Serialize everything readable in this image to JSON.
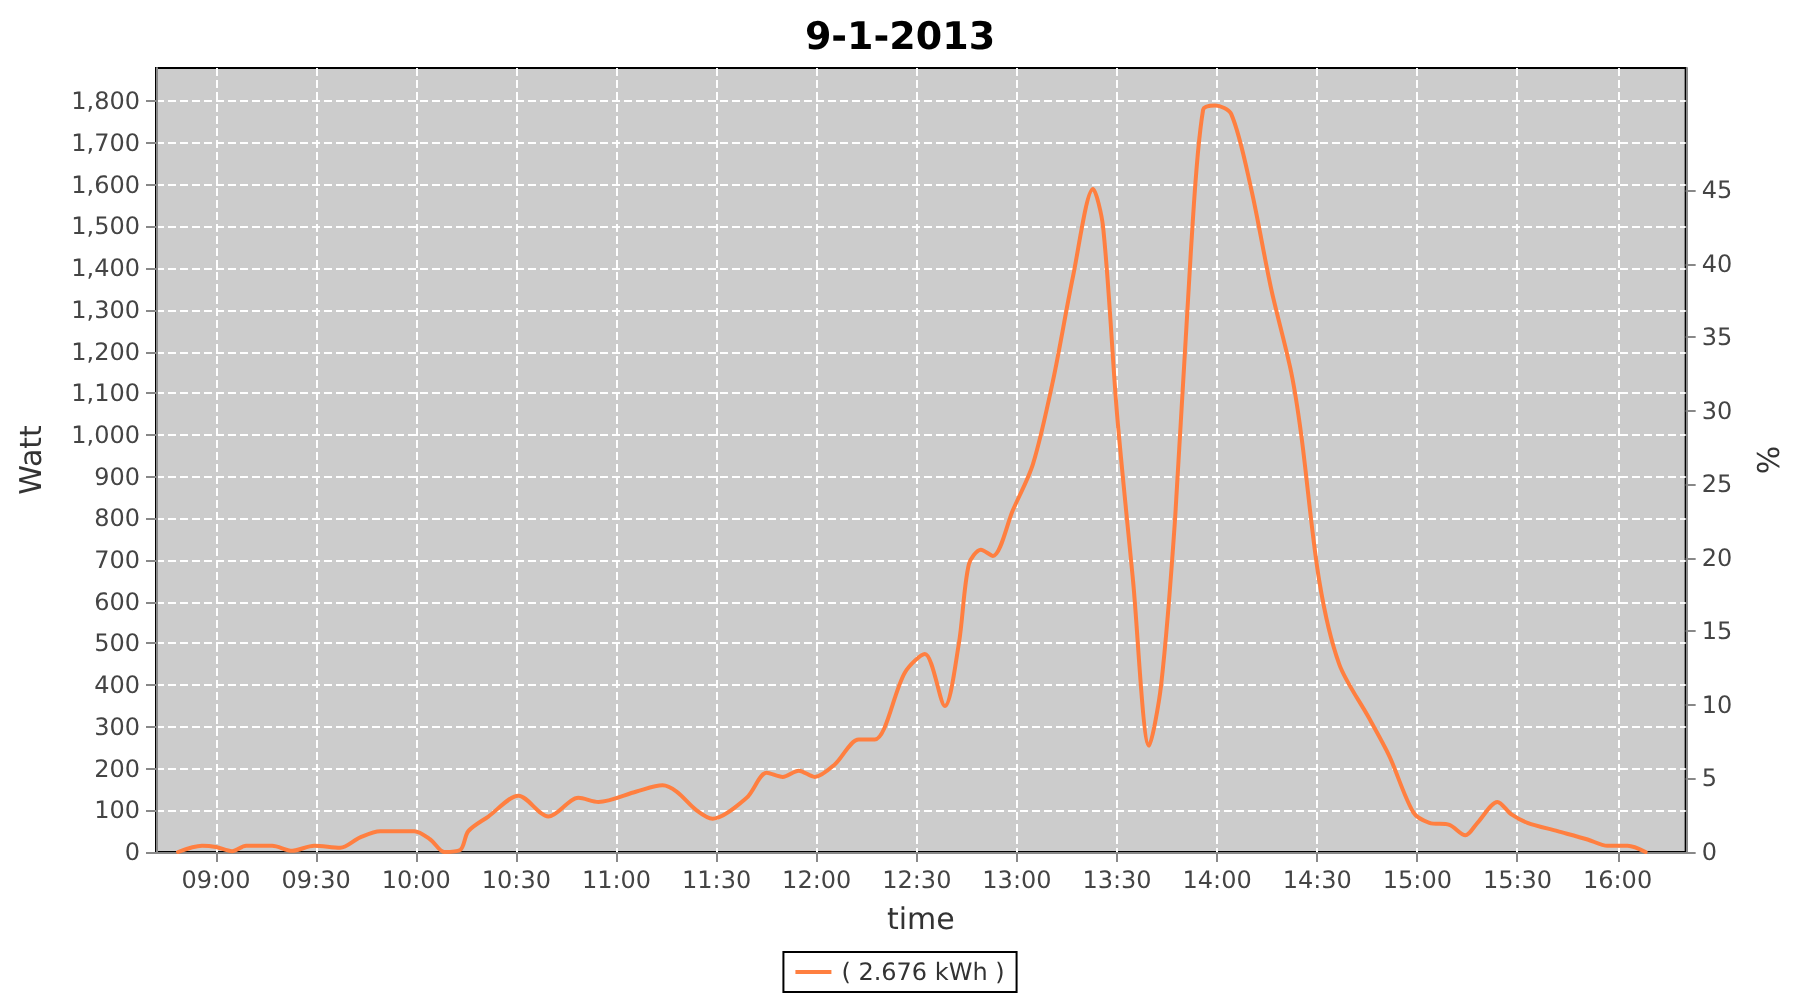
{
  "chart_data": {
    "type": "line",
    "title": "9-1-2013",
    "xlabel": "time",
    "ylabel": "Watt",
    "y2label": "%",
    "xlim": [
      8.7,
      16.34
    ],
    "xticks": [
      {
        "value": 9,
        "label": "09:00"
      },
      {
        "value": 9.5,
        "label": "09:30"
      },
      {
        "value": 10,
        "label": "10:00"
      },
      {
        "value": 10.5,
        "label": "10:30"
      },
      {
        "value": 11,
        "label": "11:00"
      },
      {
        "value": 11.5,
        "label": "11:30"
      },
      {
        "value": 12,
        "label": "12:00"
      },
      {
        "value": 12.5,
        "label": "12:30"
      },
      {
        "value": 13,
        "label": "13:00"
      },
      {
        "value": 13.5,
        "label": "13:30"
      },
      {
        "value": 14,
        "label": "14:00"
      },
      {
        "value": 14.5,
        "label": "14:30"
      },
      {
        "value": 15,
        "label": "15:00"
      },
      {
        "value": 15.5,
        "label": "15:30"
      },
      {
        "value": 16,
        "label": "16:00"
      }
    ],
    "ylim": [
      0,
      1880
    ],
    "yticks": [
      0,
      100,
      200,
      300,
      400,
      500,
      600,
      700,
      800,
      900,
      {
        "value": 1000,
        "label": "1,000"
      },
      {
        "value": 1100,
        "label": "1,100"
      },
      {
        "value": 1200,
        "label": "1,200"
      },
      {
        "value": 1300,
        "label": "1,300"
      },
      {
        "value": 1400,
        "label": "1,400"
      },
      {
        "value": 1500,
        "label": "1,500"
      },
      {
        "value": 1600,
        "label": "1,600"
      },
      {
        "value": 1700,
        "label": "1,700"
      },
      {
        "value": 1800,
        "label": "1,800"
      }
    ],
    "y2lim": [
      0,
      53.3
    ],
    "y2ticks": [
      0,
      5,
      10,
      15,
      20,
      25,
      30,
      35,
      40,
      45
    ],
    "grid": true,
    "legend": "bottom",
    "marker": "none",
    "line_style": "solid",
    "series": [
      {
        "name": "( 2.676 kWh )",
        "color": "#ff7f40",
        "x": [
          8.81,
          8.93,
          9.0,
          9.08,
          9.15,
          9.28,
          9.38,
          9.49,
          9.62,
          9.72,
          9.82,
          9.99,
          10.07,
          10.14,
          10.22,
          10.26,
          10.36,
          10.51,
          10.66,
          10.81,
          10.91,
          11.1,
          11.23,
          11.3,
          11.4,
          11.48,
          11.65,
          11.75,
          11.83,
          11.91,
          11.99,
          12.09,
          12.21,
          12.29,
          12.44,
          12.54,
          12.64,
          12.71,
          12.76,
          12.82,
          12.88,
          12.98,
          13.08,
          13.18,
          13.28,
          13.38,
          13.43,
          13.5,
          13.58,
          13.66,
          13.72,
          13.79,
          13.87,
          13.93,
          13.99,
          14.07,
          14.17,
          14.27,
          14.37,
          14.42,
          14.51,
          14.61,
          14.76,
          14.86,
          14.98,
          15.06,
          15.16,
          15.24,
          15.3,
          15.4,
          15.47,
          15.55,
          15.7,
          15.85,
          15.95,
          16.05,
          16.14
        ],
        "values": [
          0,
          15,
          12,
          2,
          15,
          15,
          3,
          15,
          10,
          35,
          50,
          50,
          30,
          0,
          5,
          50,
          85,
          135,
          85,
          130,
          120,
          145,
          160,
          145,
          100,
          80,
          130,
          190,
          180,
          195,
          180,
          210,
          270,
          270,
          430,
          475,
          350,
          500,
          690,
          725,
          710,
          820,
          930,
          1130,
          1380,
          1590,
          1500,
          1050,
          650,
          255,
          400,
          800,
          1450,
          1780,
          1790,
          1770,
          1590,
          1350,
          1150,
          1000,
          650,
          450,
          320,
          230,
          95,
          70,
          65,
          40,
          70,
          120,
          90,
          70,
          50,
          30,
          15,
          15,
          0
        ]
      }
    ]
  }
}
